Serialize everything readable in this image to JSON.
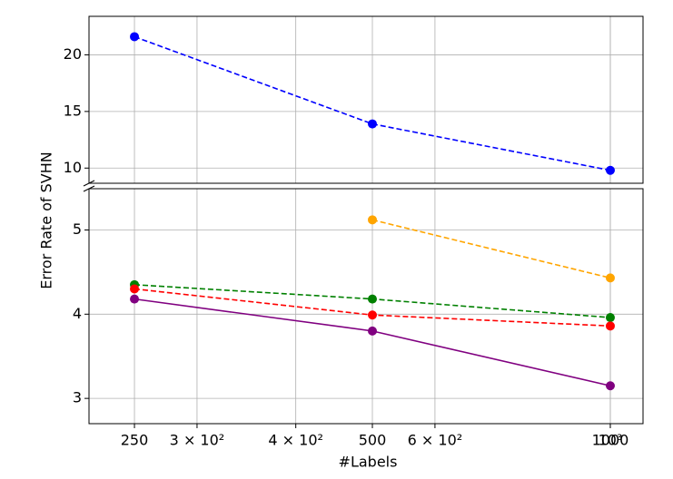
{
  "chart_data": [
    {
      "type": "line",
      "log_x": true,
      "grid": true,
      "ylim": [
        8.66,
        23.4
      ],
      "yticks": [
        10,
        15,
        20
      ],
      "series": [
        {
          "color": "#0000ff",
          "linestyle": "dashed",
          "x": [
            250,
            500,
            1000
          ],
          "values": [
            21.6,
            13.9,
            9.8
          ]
        }
      ]
    },
    {
      "type": "line",
      "log_x": true,
      "grid": true,
      "xlabel": "#Labels",
      "ylabel": "Error Rate of SVHN",
      "xlim": [
        219,
        1100
      ],
      "xticks": [
        {
          "value": 300,
          "label": "3 × 10²"
        },
        250,
        {
          "value": 400,
          "label": "4 × 10²"
        },
        500,
        {
          "value": 600,
          "label": "6 × 10²"
        },
        {
          "value": 1000,
          "label": "10³"
        },
        1000
      ],
      "ylim": [
        2.7,
        5.49
      ],
      "yticks": [
        3,
        4,
        5
      ],
      "series": [
        {
          "color": "#ffa500",
          "linestyle": "dashed",
          "x": [
            500,
            1000
          ],
          "values": [
            5.12,
            4.43
          ]
        },
        {
          "color": "#008000",
          "linestyle": "dashed",
          "x": [
            250,
            500,
            1000
          ],
          "values": [
            4.35,
            4.18,
            3.96
          ]
        },
        {
          "color": "#ff0000",
          "linestyle": "dashed",
          "x": [
            250,
            500,
            1000
          ],
          "values": [
            4.3,
            3.99,
            3.86
          ]
        },
        {
          "color": "#800080",
          "linestyle": "solid",
          "x": [
            250,
            500,
            1000
          ],
          "values": [
            4.18,
            3.8,
            3.15
          ]
        }
      ]
    }
  ]
}
